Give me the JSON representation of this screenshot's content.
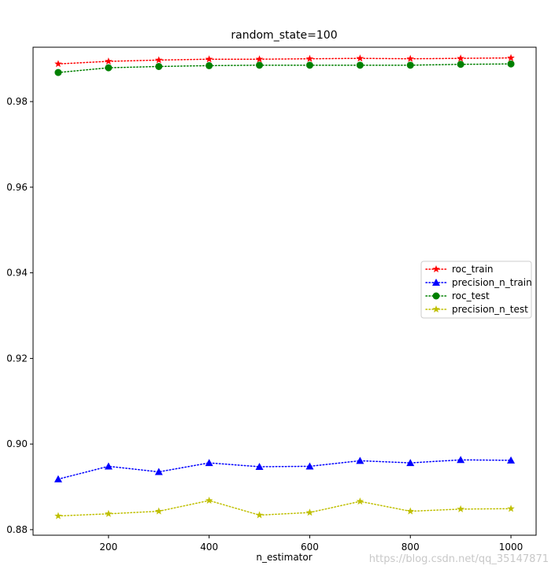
{
  "chart_data": {
    "type": "line",
    "title": "random_state=100",
    "xlabel": "n_estimator",
    "ylabel": "",
    "x": [
      100,
      200,
      300,
      400,
      500,
      600,
      700,
      800,
      900,
      1000
    ],
    "xlim": [
      50,
      1050
    ],
    "ylim": [
      0.8787,
      0.9927
    ],
    "xticks": [
      200,
      400,
      600,
      800,
      1000
    ],
    "xtick_labels": [
      "200",
      "400",
      "600",
      "800",
      "1000"
    ],
    "yticks": [
      0.88,
      0.9,
      0.92,
      0.94,
      0.96,
      0.98
    ],
    "ytick_labels": [
      "0.88",
      "0.90",
      "0.92",
      "0.94",
      "0.96",
      "0.98"
    ],
    "grid": false,
    "legend_position": "center-right",
    "series": [
      {
        "name": "roc_train",
        "color": "#ff0000",
        "marker": "star",
        "linestyle": "dotted",
        "values": [
          0.9888,
          0.9894,
          0.9897,
          0.9899,
          0.9899,
          0.99,
          0.9901,
          0.99,
          0.9901,
          0.9902
        ]
      },
      {
        "name": "precision_n_train",
        "color": "#0000ff",
        "marker": "triangle",
        "linestyle": "dotted",
        "values": [
          0.8918,
          0.8948,
          0.8935,
          0.8956,
          0.8947,
          0.8948,
          0.8961,
          0.8956,
          0.8963,
          0.8962
        ]
      },
      {
        "name": "roc_test",
        "color": "#008000",
        "marker": "circle",
        "linestyle": "dotted",
        "values": [
          0.9868,
          0.9879,
          0.9882,
          0.9884,
          0.9885,
          0.9885,
          0.9885,
          0.9885,
          0.9887,
          0.9888
        ]
      },
      {
        "name": "precision_n_test",
        "color": "#bfbf00",
        "marker": "star",
        "linestyle": "dotted",
        "values": [
          0.8832,
          0.8837,
          0.8843,
          0.8868,
          0.8834,
          0.884,
          0.8866,
          0.8843,
          0.8848,
          0.8849
        ]
      }
    ]
  },
  "watermark": "https://blog.csdn.net/qq_35147871"
}
